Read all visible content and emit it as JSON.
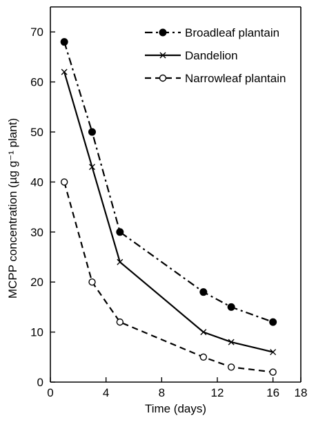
{
  "chart_data": {
    "type": "line",
    "xlabel": "Time (days)",
    "ylabel": "MCPP concentration (µg g⁻¹ plant)",
    "xlim": [
      0,
      18
    ],
    "ylim": [
      0,
      75
    ],
    "xticks": [
      0,
      4,
      8,
      12,
      16,
      18
    ],
    "yticks": [
      0,
      10,
      20,
      30,
      40,
      50,
      60,
      70
    ],
    "legend_position": "top-right",
    "grid": false,
    "series": [
      {
        "name": "Broadleaf plantain",
        "line_style": "dash-dot",
        "marker": "filled-circle",
        "x": [
          1,
          3,
          5,
          11,
          13,
          16
        ],
        "y": [
          68,
          50,
          30,
          18,
          15,
          12
        ]
      },
      {
        "name": "Dandelion",
        "line_style": "solid",
        "marker": "x",
        "x": [
          1,
          3,
          5,
          11,
          13,
          16
        ],
        "y": [
          62,
          43,
          24,
          10,
          8,
          6
        ]
      },
      {
        "name": "Narrowleaf plantain",
        "line_style": "dashed",
        "marker": "open-circle",
        "x": [
          1,
          3,
          5,
          11,
          13,
          16
        ],
        "y": [
          40,
          20,
          12,
          5,
          3,
          2
        ]
      }
    ]
  }
}
